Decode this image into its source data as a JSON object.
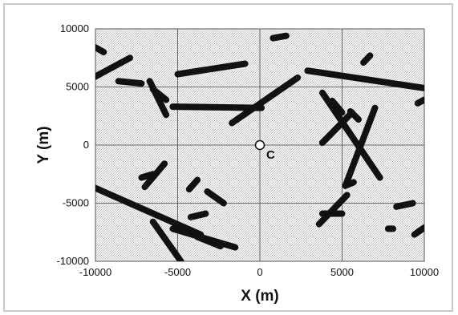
{
  "chart_data": {
    "type": "scatter",
    "title": "",
    "xlabel": "X (m)",
    "ylabel": "Y (m)",
    "xlim": [
      -10000,
      10000
    ],
    "ylim": [
      -10000,
      10000
    ],
    "xticks": [
      -10000,
      -5000,
      0,
      5000,
      10000
    ],
    "yticks": [
      -10000,
      -5000,
      0,
      5000,
      10000
    ],
    "xtick_labels": [
      "-10000",
      "-5000",
      "0",
      "5000",
      "10000"
    ],
    "ytick_labels": [
      "-10000",
      "-5000",
      "0",
      "5000",
      "10000"
    ],
    "grid": true,
    "background": "stippled gray",
    "line_color": "#111111",
    "center_point": {
      "x": 0,
      "y": 0,
      "label": "C"
    },
    "segments": [
      {
        "x1": -10000,
        "y1": 8400,
        "x2": -9500,
        "y2": 8000
      },
      {
        "x1": -10000,
        "y1": 5900,
        "x2": -7900,
        "y2": 7500
      },
      {
        "x1": -8600,
        "y1": 5500,
        "x2": -7200,
        "y2": 5300
      },
      {
        "x1": -6700,
        "y1": 5500,
        "x2": -5700,
        "y2": 2600
      },
      {
        "x1": -6500,
        "y1": 4800,
        "x2": -5700,
        "y2": 3900
      },
      {
        "x1": -5000,
        "y1": 6100,
        "x2": -900,
        "y2": 7000
      },
      {
        "x1": -5300,
        "y1": 3300,
        "x2": 100,
        "y2": 3200
      },
      {
        "x1": 800,
        "y1": 9200,
        "x2": 1600,
        "y2": 9400
      },
      {
        "x1": -1700,
        "y1": 1900,
        "x2": 2300,
        "y2": 5800
      },
      {
        "x1": 2900,
        "y1": 6400,
        "x2": 10000,
        "y2": 4900
      },
      {
        "x1": 6300,
        "y1": 7100,
        "x2": 6700,
        "y2": 7700
      },
      {
        "x1": 9600,
        "y1": 3600,
        "x2": 10000,
        "y2": 3900
      },
      {
        "x1": 3800,
        "y1": 4500,
        "x2": 7300,
        "y2": -2800
      },
      {
        "x1": 3800,
        "y1": 200,
        "x2": 5600,
        "y2": 2800
      },
      {
        "x1": 5200,
        "y1": -3500,
        "x2": 7000,
        "y2": 3200
      },
      {
        "x1": 4400,
        "y1": 3800,
        "x2": 5000,
        "y2": 2800
      },
      {
        "x1": 5500,
        "y1": 2900,
        "x2": 6000,
        "y2": 2200
      },
      {
        "x1": 3600,
        "y1": -6800,
        "x2": 5300,
        "y2": -4300
      },
      {
        "x1": 3800,
        "y1": -5900,
        "x2": 5000,
        "y2": -5900
      },
      {
        "x1": 5200,
        "y1": -3500,
        "x2": 5700,
        "y2": -3200
      },
      {
        "x1": 8300,
        "y1": -5300,
        "x2": 9300,
        "y2": -5000
      },
      {
        "x1": 7800,
        "y1": -7200,
        "x2": 8100,
        "y2": -7200
      },
      {
        "x1": 9400,
        "y1": -7700,
        "x2": 10000,
        "y2": -7100
      },
      {
        "x1": -7000,
        "y1": -3600,
        "x2": -5800,
        "y2": -1600
      },
      {
        "x1": -7200,
        "y1": -2800,
        "x2": -6500,
        "y2": -2500
      },
      {
        "x1": -10000,
        "y1": -3700,
        "x2": -3600,
        "y2": -7700
      },
      {
        "x1": -5300,
        "y1": -7200,
        "x2": -1500,
        "y2": -8800
      },
      {
        "x1": -3800,
        "y1": -7900,
        "x2": -2400,
        "y2": -8700
      },
      {
        "x1": -6500,
        "y1": -6600,
        "x2": -4800,
        "y2": -10000
      },
      {
        "x1": -4300,
        "y1": -3800,
        "x2": -3800,
        "y2": -3000
      },
      {
        "x1": -3200,
        "y1": -4000,
        "x2": -2200,
        "y2": -5000
      },
      {
        "x1": -4200,
        "y1": -6200,
        "x2": -3300,
        "y2": -5900
      }
    ]
  }
}
